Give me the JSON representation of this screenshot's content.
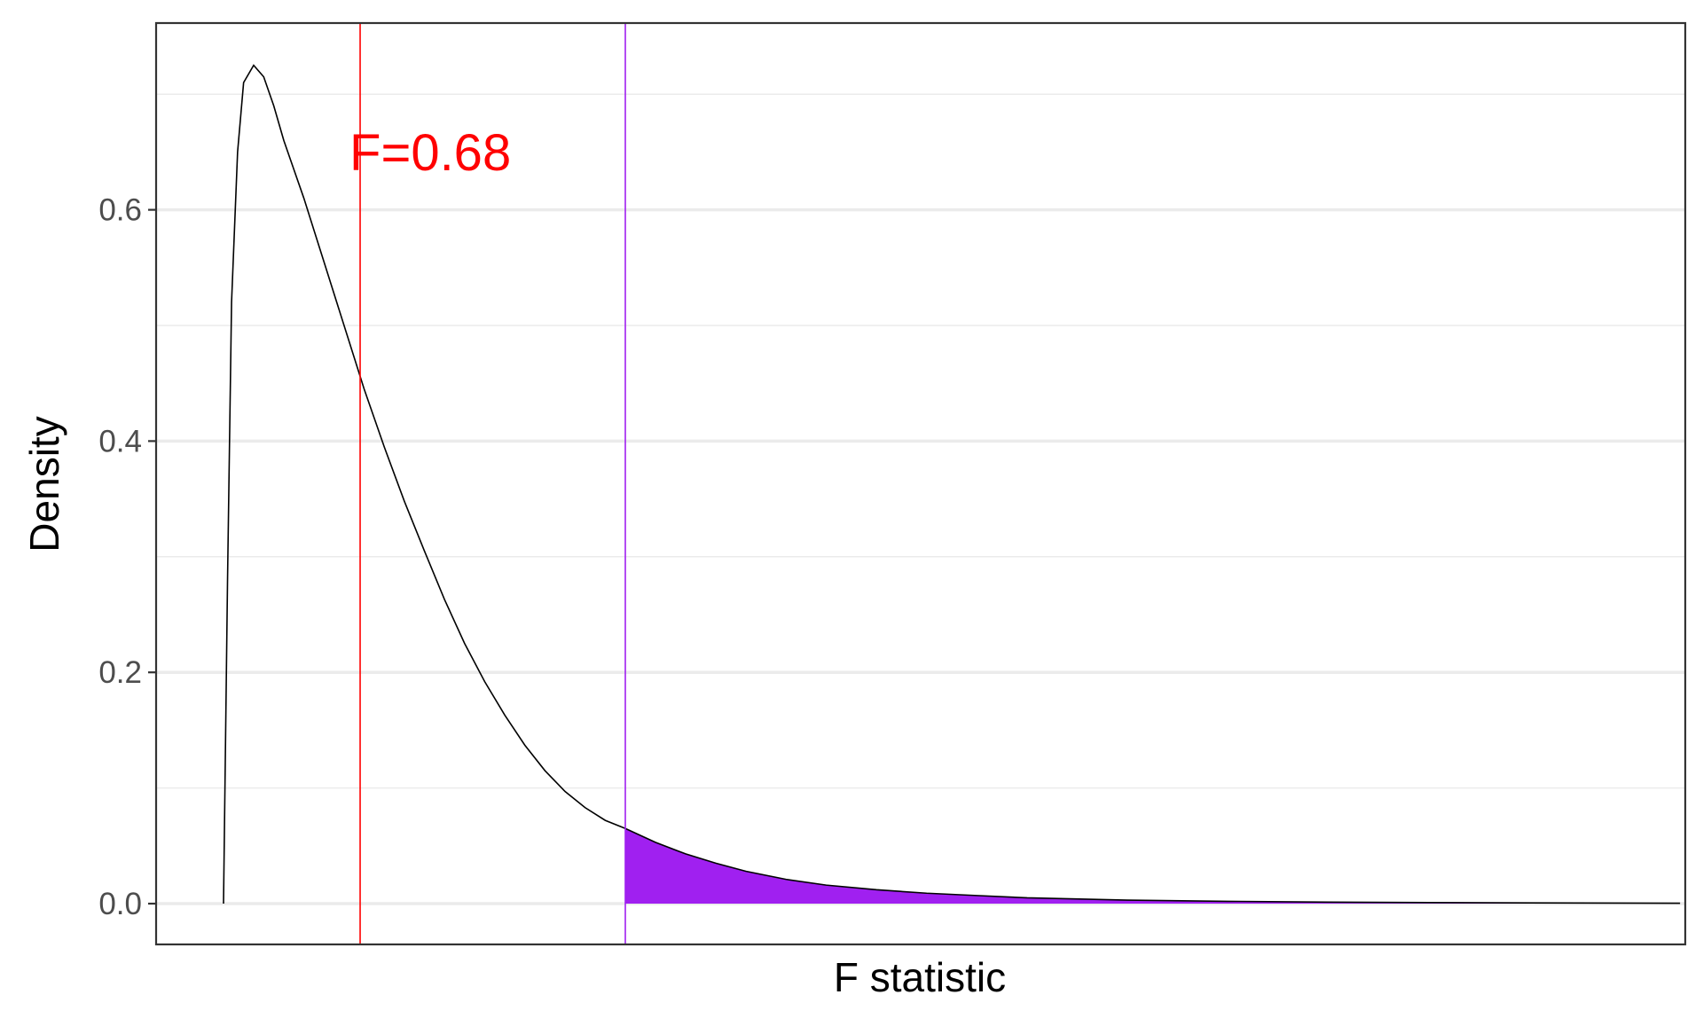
{
  "chart_data": {
    "type": "line",
    "title": "",
    "xlabel": "F statistic",
    "ylabel": "Density",
    "ylim": [
      -0.07,
      1.5
    ],
    "y_visible_max": 0.76,
    "yticks": [
      0.0,
      0.2,
      0.4,
      0.6
    ],
    "ytick_labels": [
      "0.0",
      "0.2",
      "0.4",
      "0.6"
    ],
    "x_ticks_shown": false,
    "xlim": [
      -0.31,
      7.62
    ],
    "grid": true,
    "series": [
      {
        "x": [
          0.0,
          0.02,
          0.04,
          0.07,
          0.1,
          0.15,
          0.2,
          0.25,
          0.3,
          0.35,
          0.4,
          0.5,
          0.6,
          0.7,
          0.8,
          0.9,
          1.0,
          1.1,
          1.2,
          1.3,
          1.4,
          1.5,
          1.6,
          1.7,
          1.8,
          1.9,
          2.0,
          2.15,
          2.3,
          2.45,
          2.6,
          2.8,
          3.0,
          3.25,
          3.5,
          3.75,
          4.0,
          4.5,
          5.0,
          5.5,
          6.0,
          6.5,
          7.0,
          7.25
        ],
        "y": [
          0.0,
          0.28,
          0.52,
          0.65,
          0.71,
          0.725,
          0.715,
          0.69,
          0.66,
          0.635,
          0.61,
          0.555,
          0.5,
          0.445,
          0.395,
          0.348,
          0.305,
          0.263,
          0.225,
          0.192,
          0.163,
          0.137,
          0.115,
          0.097,
          0.083,
          0.072,
          0.065,
          0.053,
          0.043,
          0.035,
          0.028,
          0.021,
          0.016,
          0.012,
          0.009,
          0.007,
          0.005,
          0.003,
          0.002,
          0.0013,
          0.0009,
          0.0006,
          0.0004,
          0.0003
        ],
        "color": "#000000"
      }
    ],
    "shaded_region": {
      "x_start": 2.0,
      "color": "#a020f0"
    },
    "annotations": [
      {
        "label": "F=0.68",
        "x": 0.68,
        "color": "#ff0000"
      }
    ],
    "vlines": [
      {
        "x": 0.68,
        "color": "#ff0000"
      },
      {
        "x": 2.0,
        "color": "#a020f0"
      }
    ]
  }
}
